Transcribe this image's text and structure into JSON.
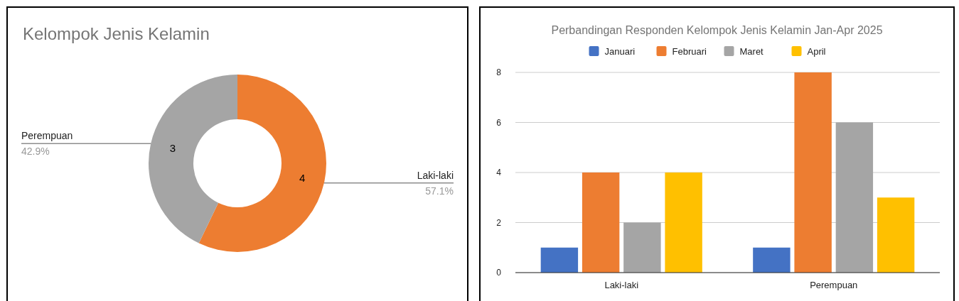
{
  "chart_data": [
    {
      "type": "donut",
      "title": "Kelompok Jenis Kelamin",
      "categories": [
        "Laki-laki",
        "Perempuan"
      ],
      "values": [
        4,
        3
      ],
      "colors": [
        "#ed7d31",
        "#a5a5a5"
      ],
      "data_labels": true,
      "annotations": [
        "57.1%",
        "42.9%"
      ]
    },
    {
      "type": "bar",
      "title": "Perbandingan Responden Kelompok Jenis Kelamin Jan-Apr 2025",
      "categories": [
        "Laki-laki",
        "Perempuan"
      ],
      "series": [
        {
          "name": "Januari",
          "color": "#4472c4",
          "values": [
            1,
            1
          ]
        },
        {
          "name": "Februari",
          "color": "#ed7d31",
          "values": [
            4,
            8
          ]
        },
        {
          "name": "Maret",
          "color": "#a5a5a5",
          "values": [
            2,
            6
          ]
        },
        {
          "name": "April",
          "color": "#ffc000",
          "values": [
            4,
            3
          ]
        }
      ],
      "ylim": [
        0,
        8
      ],
      "yticks": [
        0,
        2,
        4,
        6,
        8
      ],
      "grid": "y",
      "legend": "top"
    }
  ]
}
